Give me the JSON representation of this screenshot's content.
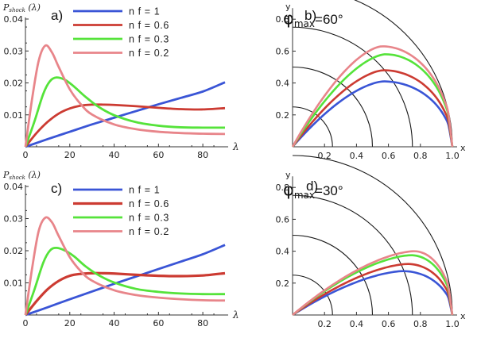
{
  "chart_data": [
    {
      "type": "line",
      "panel": "a)",
      "ylabel": {
        "main": "P",
        "sub": "shock",
        "arg": "(λ)"
      },
      "xlabel": "λ",
      "xlim": [
        0,
        90
      ],
      "ylim": [
        0,
        0.04
      ],
      "xticks": [
        "20",
        "40",
        "60",
        "80"
      ],
      "yticks": [
        "0.01",
        "0.02",
        "0.03",
        "0.04"
      ],
      "title": {
        "phi": "φ",
        "sub": "max",
        "value": "=60°"
      },
      "series": [
        {
          "name": "n f = 1",
          "color": "#3a55d6",
          "x": [
            0,
            10,
            20,
            30,
            40,
            50,
            60,
            70,
            80,
            90
          ],
          "y": [
            0,
            0.0024,
            0.0047,
            0.007,
            0.0091,
            0.0112,
            0.0133,
            0.0153,
            0.0173,
            0.0202
          ]
        },
        {
          "name": "n f = 0.6",
          "color": "#cc3b32",
          "x": [
            0,
            5,
            10,
            15,
            20,
            25,
            30,
            35,
            40,
            50,
            60,
            70,
            80,
            90
          ],
          "y": [
            0,
            0.0043,
            0.0078,
            0.0104,
            0.012,
            0.0129,
            0.0132,
            0.0132,
            0.0131,
            0.0127,
            0.0122,
            0.0118,
            0.0117,
            0.0121
          ]
        },
        {
          "name": "n f = 0.3",
          "color": "#55e33a",
          "x": [
            0,
            4,
            8,
            11,
            14,
            18,
            22,
            27,
            33,
            40,
            50,
            60,
            70,
            80,
            90
          ],
          "y": [
            0,
            0.0078,
            0.0165,
            0.0205,
            0.0217,
            0.0209,
            0.0188,
            0.0157,
            0.0125,
            0.0099,
            0.0077,
            0.0066,
            0.0061,
            0.006,
            0.006
          ]
        },
        {
          "name": "n f = 0.2",
          "color": "#e8858a",
          "x": [
            0,
            3,
            6,
            9,
            12,
            15,
            20,
            25,
            30,
            40,
            50,
            60,
            70,
            80,
            90
          ],
          "y": [
            0,
            0.015,
            0.027,
            0.0317,
            0.0295,
            0.025,
            0.018,
            0.0133,
            0.0101,
            0.007,
            0.0055,
            0.0047,
            0.0043,
            0.0041,
            0.004
          ]
        }
      ]
    },
    {
      "type": "line",
      "panel": "b)",
      "xlabel": "x",
      "ylabel": "y",
      "xlim": [
        0,
        1.0
      ],
      "ylim": [
        0,
        0.8
      ],
      "xticks": [
        "0.2",
        "0.4",
        "0.6",
        "0.8",
        "1.0"
      ],
      "yticks": [
        "0.2",
        "0.4",
        "0.6",
        "0.8"
      ],
      "arc_radii": [
        0.25,
        0.5,
        0.75,
        1.0
      ],
      "series": [
        {
          "name": "n f = 1",
          "color": "#3a55d6",
          "peak": 0.41,
          "peak_x": 0.57
        },
        {
          "name": "n f = 0.6",
          "color": "#cc3b32",
          "peak": 0.48,
          "peak_x": 0.57
        },
        {
          "name": "n f = 0.3",
          "color": "#55e33a",
          "peak": 0.58,
          "peak_x": 0.58
        },
        {
          "name": "n f = 0.2",
          "color": "#e8858a",
          "peak": 0.63,
          "peak_x": 0.56
        }
      ]
    },
    {
      "type": "line",
      "panel": "c)",
      "ylabel": {
        "main": "P",
        "sub": "shock",
        "arg": "(λ)"
      },
      "xlabel": "λ",
      "xlim": [
        0,
        90
      ],
      "ylim": [
        0,
        0.04
      ],
      "xticks": [
        "20",
        "40",
        "60",
        "80"
      ],
      "yticks": [
        "0.01",
        "0.02",
        "0.03",
        "0.04"
      ],
      "title": {
        "phi": "φ",
        "sub": "max",
        "value": "=30°"
      },
      "series": [
        {
          "name": "n f = 1",
          "color": "#3a55d6",
          "x": [
            0,
            10,
            20,
            30,
            40,
            50,
            60,
            70,
            80,
            90
          ],
          "y": [
            0,
            0.0024,
            0.0049,
            0.0073,
            0.0097,
            0.012,
            0.0143,
            0.0166,
            0.0189,
            0.0218
          ]
        },
        {
          "name": "n f = 0.6",
          "color": "#cc3b32",
          "x": [
            0,
            5,
            10,
            15,
            20,
            25,
            30,
            35,
            40,
            50,
            60,
            70,
            80,
            90
          ],
          "y": [
            0,
            0.0043,
            0.008,
            0.0106,
            0.0122,
            0.0128,
            0.013,
            0.013,
            0.0129,
            0.0125,
            0.0122,
            0.0121,
            0.0123,
            0.013
          ]
        },
        {
          "name": "n f = 0.3",
          "color": "#55e33a",
          "x": [
            0,
            4,
            8,
            11,
            14,
            18,
            22,
            27,
            33,
            40,
            50,
            60,
            70,
            80,
            90
          ],
          "y": [
            0,
            0.0078,
            0.0162,
            0.02,
            0.0209,
            0.02,
            0.0182,
            0.0152,
            0.0124,
            0.0101,
            0.0081,
            0.0072,
            0.0067,
            0.0065,
            0.0065
          ]
        },
        {
          "name": "n f = 0.2",
          "color": "#e8858a",
          "x": [
            0,
            3,
            6,
            9,
            12,
            15,
            20,
            25,
            30,
            40,
            50,
            60,
            70,
            80,
            90
          ],
          "y": [
            0,
            0.0145,
            0.0262,
            0.0303,
            0.0288,
            0.0246,
            0.018,
            0.0136,
            0.0107,
            0.0077,
            0.0062,
            0.0054,
            0.0049,
            0.0046,
            0.0045
          ]
        }
      ]
    },
    {
      "type": "line",
      "panel": "d)",
      "xlabel": "x",
      "ylabel": "y",
      "xlim": [
        0,
        1.0
      ],
      "ylim": [
        0,
        0.8
      ],
      "xticks": [
        "0.2",
        "0.4",
        "0.6",
        "0.8",
        "1.0"
      ],
      "yticks": [
        "0.2",
        "0.4",
        "0.6",
        "0.8"
      ],
      "arc_radii": [
        0.25,
        0.5,
        0.75,
        1.0
      ],
      "series": [
        {
          "name": "n f = 1",
          "color": "#3a55d6",
          "peak": 0.275,
          "peak_x": 0.69
        },
        {
          "name": "n f = 0.6",
          "color": "#cc3b32",
          "peak": 0.32,
          "peak_x": 0.72
        },
        {
          "name": "n f = 0.3",
          "color": "#55e33a",
          "peak": 0.375,
          "peak_x": 0.74
        },
        {
          "name": "n f = 0.2",
          "color": "#e8858a",
          "peak": 0.4,
          "peak_x": 0.76
        }
      ]
    }
  ]
}
